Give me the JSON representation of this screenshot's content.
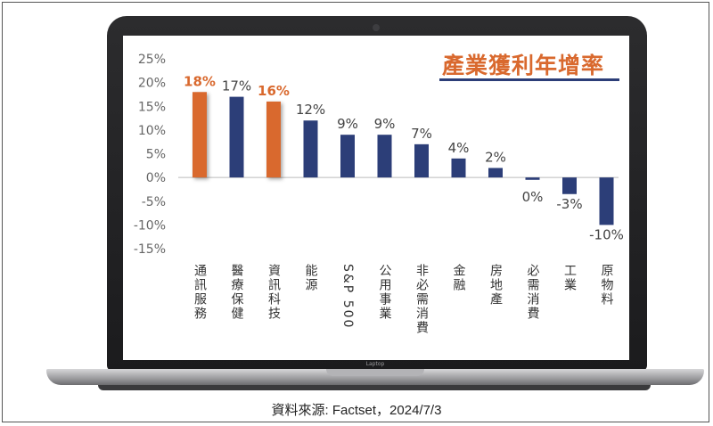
{
  "chart_data": {
    "type": "bar",
    "title": "產業獲利年增率",
    "categories": [
      "通訊服務",
      "醫療保健",
      "資訊科技",
      "能源",
      "S&P 500",
      "公用事業",
      "非必需消費",
      "金融",
      "房地產",
      "必需消費",
      "工業",
      "原物料"
    ],
    "values": [
      18,
      17,
      16,
      12,
      9,
      9,
      7,
      4,
      2,
      -0.5,
      -3.5,
      -10
    ],
    "value_labels": [
      "18%",
      "17%",
      "16%",
      "12%",
      "9%",
      "9%",
      "7%",
      "4%",
      "2%",
      "0%",
      "-3%",
      "-10%"
    ],
    "highlight": [
      true,
      false,
      true,
      false,
      false,
      false,
      false,
      false,
      false,
      false,
      false,
      false
    ],
    "ylim": [
      -15,
      25
    ],
    "yticks": [
      25,
      20,
      15,
      10,
      5,
      0,
      -5,
      -10,
      -15
    ],
    "ytick_labels": [
      "25%",
      "20%",
      "15%",
      "10%",
      "5%",
      "0%",
      "-5%",
      "-10%",
      "-15%"
    ],
    "grid": false,
    "colors": {
      "default": "#2c3e78",
      "highlight": "#d9692e",
      "zero_line": "#bbbbbb"
    }
  },
  "device": {
    "brand": "Laptop"
  },
  "source": "資料來源: Factset，2024/7/3"
}
